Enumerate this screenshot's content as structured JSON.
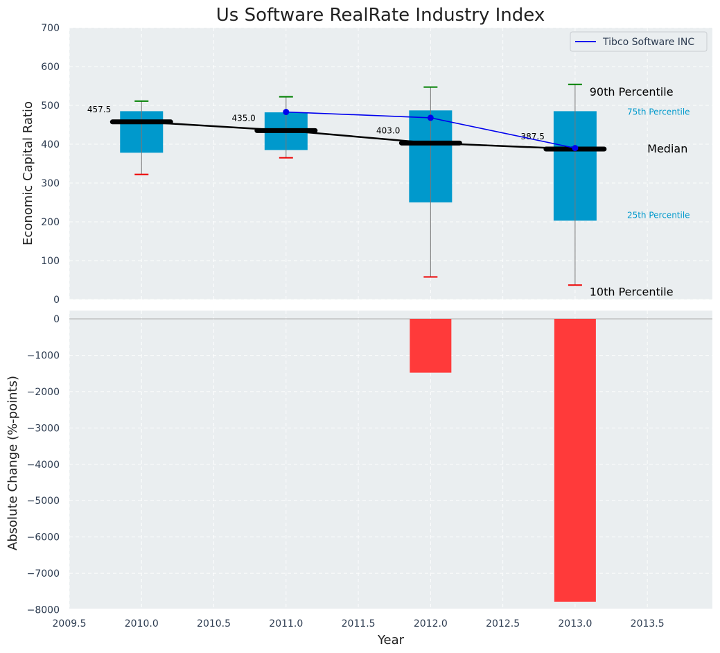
{
  "title": "Us Software RealRate Industry Index",
  "colors": {
    "panel_bg": "#eaeef0",
    "box": "#0099cc",
    "median": "#000000",
    "company_line": "#0000ee",
    "p90_cap": "#008000",
    "p10_cap": "#ee0000",
    "change_bar": "#ff3a3a",
    "zero_line": "#aaaaaa",
    "pct_label_color": "#0099cc"
  },
  "chart_data": [
    {
      "type": "box",
      "ylabel": "Economic Capital Ratio",
      "ylim": [
        0,
        700
      ],
      "yticks": [
        0,
        100,
        200,
        300,
        400,
        500,
        600,
        700
      ],
      "xlim": [
        2009.5,
        2013.95
      ],
      "xticks": [
        "2009.5",
        "2010.0",
        "2010.5",
        "2011.0",
        "2011.5",
        "2012.0",
        "2012.5",
        "2013.0",
        "2013.5"
      ],
      "xtick_values": [
        2009.5,
        2010.0,
        2010.5,
        2011.0,
        2011.5,
        2012.0,
        2012.5,
        2013.0,
        2013.5
      ],
      "grid": true,
      "years": [
        2010,
        2011,
        2012,
        2013
      ],
      "p10": [
        322,
        365,
        58,
        37
      ],
      "p25": [
        378,
        385,
        250,
        203
      ],
      "median": [
        457.5,
        435.0,
        403.0,
        387.5
      ],
      "median_labels": [
        "457.5",
        "435.0",
        "403.0",
        "387.5"
      ],
      "p75": [
        485,
        482,
        487,
        485
      ],
      "p90": [
        511,
        522,
        547,
        554
      ],
      "company_series": {
        "name": "Tibco Software INC",
        "x": [
          2011,
          2012,
          2013
        ],
        "y": [
          483,
          468,
          390
        ]
      },
      "legend": {
        "placement": "top-right",
        "entries": [
          "Tibco Software INC"
        ]
      },
      "annotations": {
        "p90": "90th Percentile",
        "p75": "75th Percentile",
        "median": "Median",
        "p25": "25th Percentile",
        "p10": "10th Percentile"
      }
    },
    {
      "type": "bar",
      "ylabel": "Absolute Change (%-points)",
      "xlabel": "Year",
      "ylim": [
        -8200,
        0
      ],
      "yticks": [
        0,
        -1000,
        -2000,
        -3000,
        -4000,
        -5000,
        -6000,
        -7000,
        -8000
      ],
      "ytick_labels": [
        "0",
        "−1000",
        "−2000",
        "−3000",
        "−4000",
        "−5000",
        "−6000",
        "−7000",
        "−8000"
      ],
      "x": [
        2012,
        2013
      ],
      "values": [
        -1480,
        -7780
      ],
      "grid": true
    }
  ]
}
